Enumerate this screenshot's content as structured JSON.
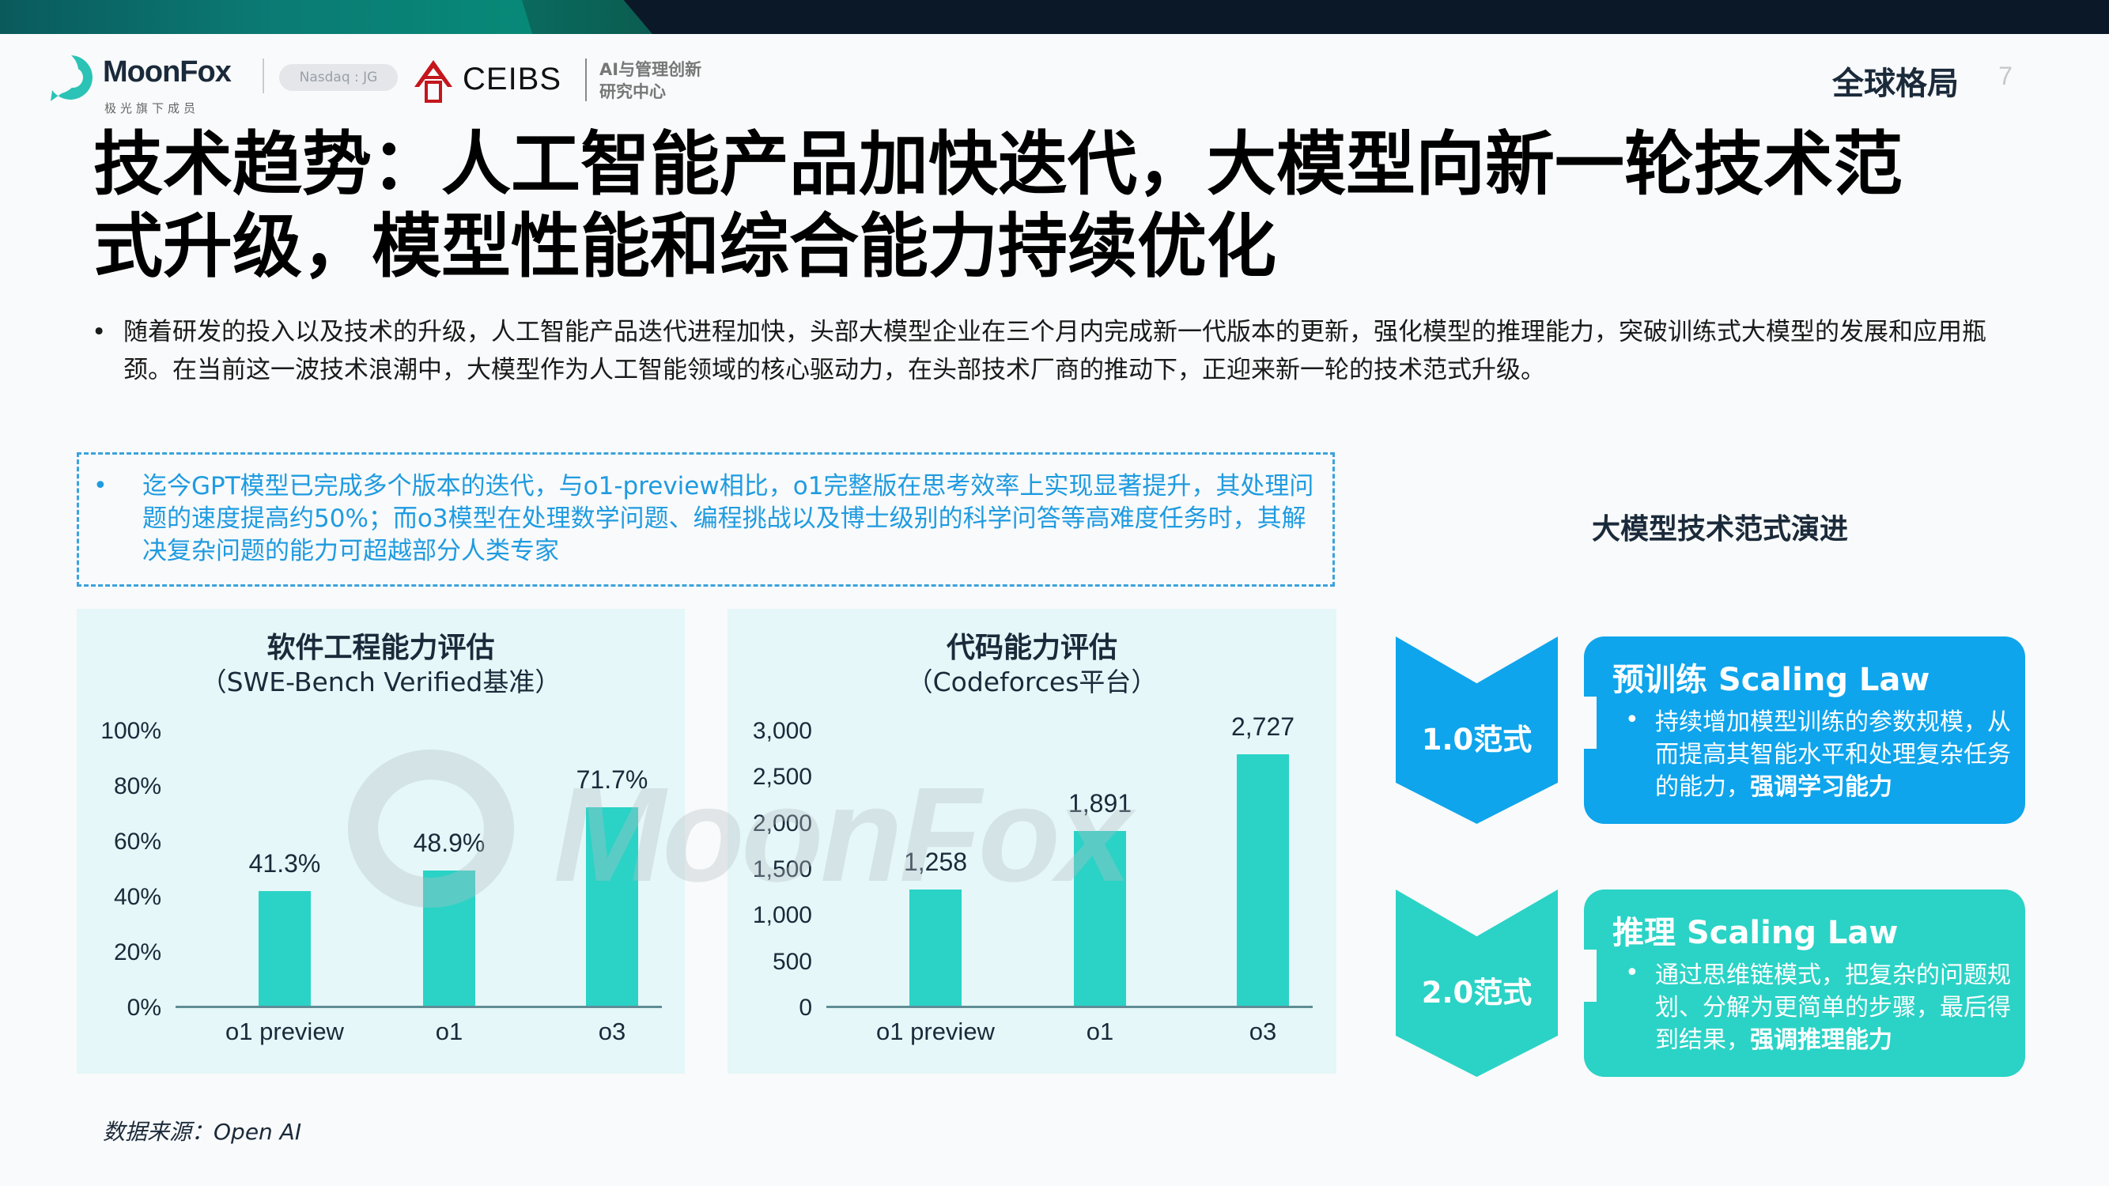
{
  "header": {
    "brand_name": "MoonFox",
    "brand_sub": "极光旗下成员",
    "ticker_badge": "Nasdaq : JG",
    "partner_name": "CEIBS",
    "partner_sub_line1": "AI与管理创新",
    "partner_sub_line2": "研究中心",
    "section_label": "全球格局",
    "page_number": "7"
  },
  "title": {
    "line1": "技术趋势：人工智能产品加快迭代，大模型向新一轮技术范",
    "line2": "式升级，模型性能和综合能力持续优化"
  },
  "intro": {
    "bullet": "•",
    "text": "随着研发的投入以及技术的升级，人工智能产品迭代进程加快，头部大模型企业在三个月内完成新一代版本的更新，强化模型的推理能力，突破训练式大模型的发展和应用瓶颈。在当前这一波技术浪潮中，大模型作为人工智能领域的核心驱动力，在头部技术厂商的推动下，正迎来新一轮的技术范式升级。"
  },
  "highlight": {
    "bullet": "•",
    "text": "迄今GPT模型已完成多个版本的迭代，与o1-preview相比，o1完整版在思考效率上实现显著提升，其处理问题的速度提高约50%；而o3模型在处理数学问题、编程挑战以及博士级别的科学问答等高难度任务时，其解决复杂问题的能力可超越部分人类专家",
    "color": "#1f9be0"
  },
  "watermark": {
    "text": "MoonFox"
  },
  "chart_data": [
    {
      "type": "bar",
      "title": "软件工程能力评估",
      "subtitle": "（SWE-Bench Verified基准）",
      "categories": [
        "o1 preview",
        "o1",
        "o3"
      ],
      "values": [
        41.3,
        48.9,
        71.7
      ],
      "value_labels": [
        "41.3%",
        "48.9%",
        "71.7%"
      ],
      "yticks": [
        "0%",
        "20%",
        "40%",
        "60%",
        "80%",
        "100%"
      ],
      "ylim": [
        0,
        100
      ],
      "xlabel": "",
      "ylabel": "",
      "grid": false,
      "bar_color": "#2ad3c6"
    },
    {
      "type": "bar",
      "title": "代码能力评估",
      "subtitle": "（Codeforces平台）",
      "categories": [
        "o1 preview",
        "o1",
        "o3"
      ],
      "values": [
        1258,
        1891,
        2727
      ],
      "value_labels": [
        "1,258",
        "1,891",
        "2,727"
      ],
      "yticks": [
        "0",
        "500",
        "1,000",
        "1,500",
        "2,000",
        "2,500",
        "3,000"
      ],
      "ylim": [
        0,
        3000
      ],
      "xlabel": "",
      "ylabel": "",
      "grid": false,
      "bar_color": "#2ad3c6"
    }
  ],
  "evolution": {
    "title": "大模型技术范式演进",
    "stages": [
      {
        "label": "1.0范式",
        "card_title": "预训练 Scaling Law",
        "bullet": "•",
        "body": "持续增加模型训练的参数规模，从而提高其智能水平和处理复杂任务的能力，",
        "emphasis": "强调学习能力",
        "color": "#0ea5ec"
      },
      {
        "label": "2.0范式",
        "card_title": "推理 Scaling Law",
        "bullet": "•",
        "body": "通过思维链模式，把复杂的问题规划、分解为更简单的步骤，最后得到结果，",
        "emphasis": "强调推理能力",
        "color": "#2ad3c6"
      }
    ]
  },
  "source": "数据来源：Open AI"
}
